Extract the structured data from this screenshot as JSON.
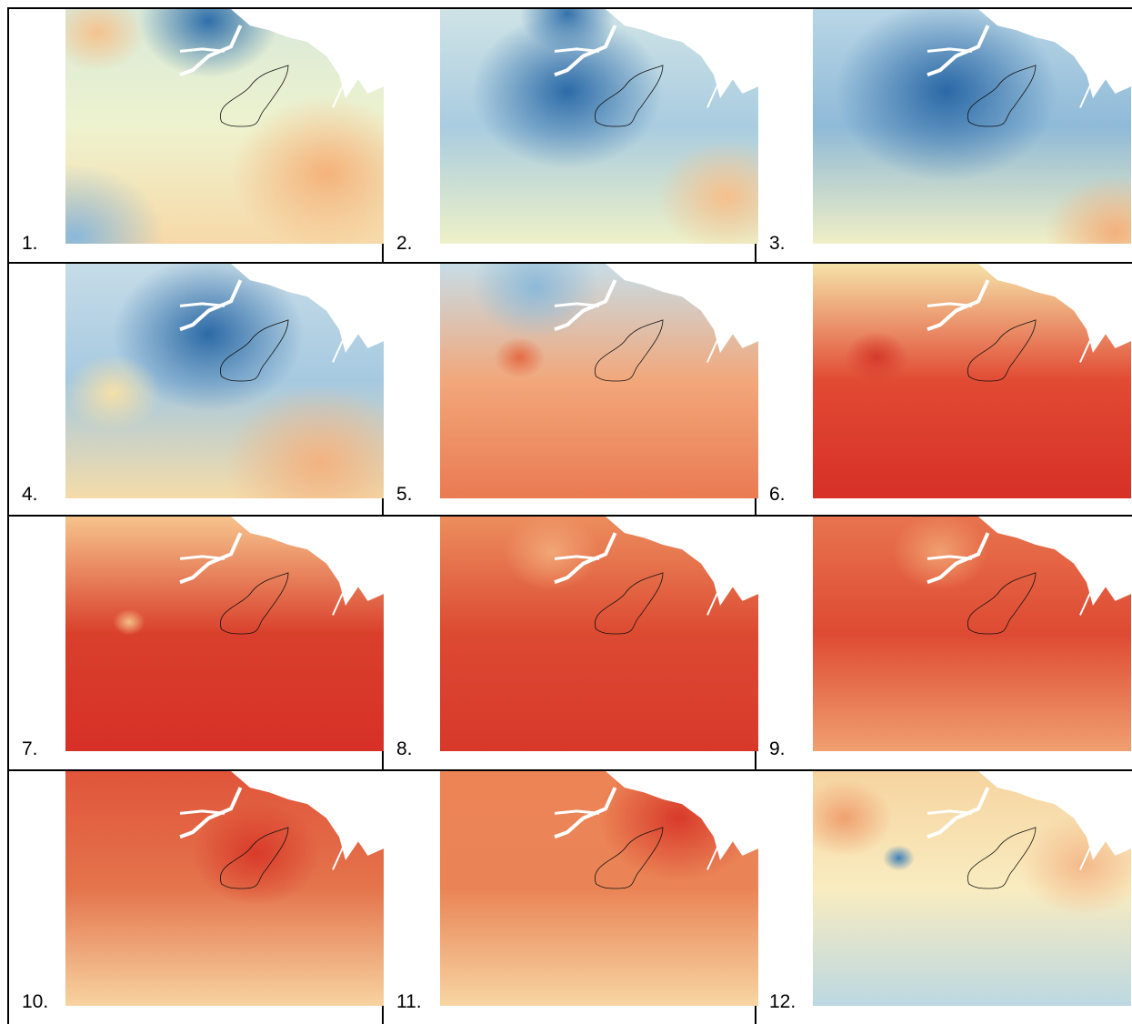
{
  "panels": [
    {
      "label": "1."
    },
    {
      "label": "2."
    },
    {
      "label": "3."
    },
    {
      "label": "4."
    },
    {
      "label": "5."
    },
    {
      "label": "6."
    },
    {
      "label": "7."
    },
    {
      "label": "8."
    },
    {
      "label": "9."
    },
    {
      "label": "10."
    },
    {
      "label": "11."
    },
    {
      "label": "12."
    }
  ]
}
